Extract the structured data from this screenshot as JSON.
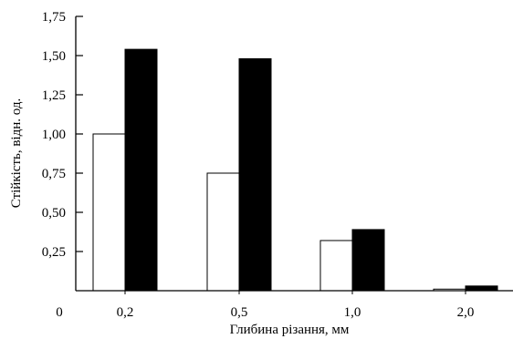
{
  "chart_data": {
    "type": "bar",
    "title": "",
    "xlabel": "Глибина різання, мм",
    "ylabel": "Стійкість, відн. од.",
    "origin_label": "0",
    "categories": [
      "0,2",
      "0,5",
      "1,0",
      "2,0"
    ],
    "series": [
      {
        "fill": "#ffffff",
        "values": [
          1.0,
          0.75,
          0.32,
          0.01
        ]
      },
      {
        "fill": "#000000",
        "values": [
          1.54,
          1.48,
          0.39,
          0.03
        ]
      }
    ],
    "ylim": [
      0,
      1.75
    ],
    "yticks": [
      {
        "value": 0.25,
        "label": "0,25"
      },
      {
        "value": 0.5,
        "label": "0,50"
      },
      {
        "value": 0.75,
        "label": "0,75"
      },
      {
        "value": 1.0,
        "label": "1,00"
      },
      {
        "value": 1.25,
        "label": "1,25"
      },
      {
        "value": 1.5,
        "label": "1,50"
      },
      {
        "value": 1.75,
        "label": "1,75"
      }
    ],
    "grid": false,
    "legend": "none"
  }
}
